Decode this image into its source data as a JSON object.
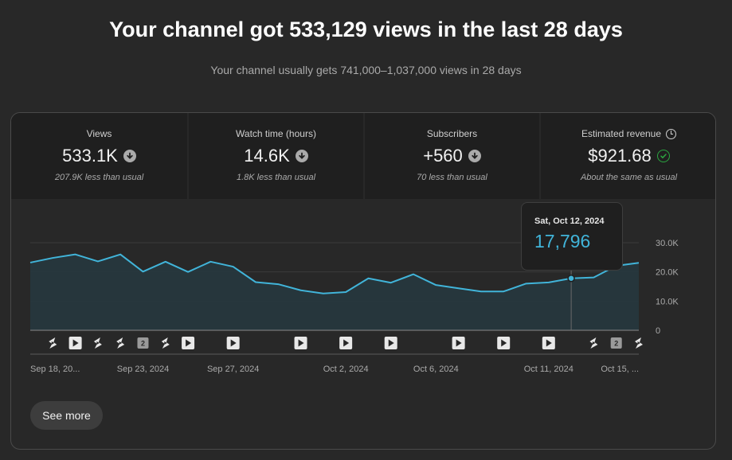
{
  "header": {
    "title": "Your channel got 533,129 views in the last 28 days",
    "subtitle": "Your channel usually gets 741,000–1,037,000 views in 28 days"
  },
  "metrics": [
    {
      "label": "Views",
      "value": "533.1K",
      "note": "207.9K less than usual",
      "trend": "down",
      "selected": false
    },
    {
      "label": "Watch time (hours)",
      "value": "14.6K",
      "note": "1.8K less than usual",
      "trend": "down",
      "selected": false
    },
    {
      "label": "Subscribers",
      "value": "+560",
      "note": "70 less than usual",
      "trend": "down",
      "selected": false
    },
    {
      "label": "Estimated revenue",
      "value": "$921.68",
      "note": "About the same as usual",
      "trend": "same",
      "selected": false,
      "label_icon": "clock-icon"
    }
  ],
  "tooltip": {
    "date": "Sat, Oct 12, 2024",
    "value": "17,796"
  },
  "see_more_label": "See more",
  "colors": {
    "line": "#41b4d9",
    "accent_green": "#2ba640",
    "background": "#282828"
  },
  "chart_data": {
    "type": "area",
    "ylim": [
      0,
      30000
    ],
    "yticks": [
      "30.0K",
      "20.0K",
      "10.0K",
      "0"
    ],
    "ytick_values": [
      30000,
      20000,
      10000,
      0
    ],
    "xtick_labels": [
      "Sep 18, 20...",
      "Sep 23, 2024",
      "Sep 27, 2024",
      "Oct 2, 2024",
      "Oct 6, 2024",
      "Oct 11, 2024",
      "Oct 15, ..."
    ],
    "xtick_days": [
      0,
      5,
      9,
      14,
      18,
      23,
      27
    ],
    "days": [
      "Sep 18",
      "Sep 19",
      "Sep 20",
      "Sep 21",
      "Sep 22",
      "Sep 23",
      "Sep 24",
      "Sep 25",
      "Sep 26",
      "Sep 27",
      "Sep 28",
      "Sep 29",
      "Sep 30",
      "Oct 1",
      "Oct 2",
      "Oct 3",
      "Oct 4",
      "Oct 5",
      "Oct 6",
      "Oct 7",
      "Oct 8",
      "Oct 9",
      "Oct 10",
      "Oct 11",
      "Oct 12",
      "Oct 13",
      "Oct 14",
      "Oct 15"
    ],
    "series": [
      {
        "values": [
          23200,
          24800,
          26000,
          23600,
          26000,
          20100,
          23500,
          20000,
          23500,
          21800,
          16500,
          15800,
          13700,
          12600,
          13100,
          17800,
          16300,
          19200,
          15500,
          14400,
          13300,
          13300,
          16000,
          16400,
          17796,
          18100,
          22100,
          23100
        ]
      }
    ],
    "highlight_index": 24,
    "markers": [
      {
        "day": 1,
        "kind": "shorts"
      },
      {
        "day": 2,
        "kind": "video"
      },
      {
        "day": 3,
        "kind": "shorts"
      },
      {
        "day": 4,
        "kind": "shorts"
      },
      {
        "day": 5,
        "kind": "count",
        "label": "2"
      },
      {
        "day": 6,
        "kind": "shorts"
      },
      {
        "day": 7,
        "kind": "video"
      },
      {
        "day": 9,
        "kind": "video"
      },
      {
        "day": 12,
        "kind": "video"
      },
      {
        "day": 14,
        "kind": "video"
      },
      {
        "day": 16,
        "kind": "video"
      },
      {
        "day": 19,
        "kind": "video"
      },
      {
        "day": 21,
        "kind": "video"
      },
      {
        "day": 23,
        "kind": "video"
      },
      {
        "day": 25,
        "kind": "shorts"
      },
      {
        "day": 26,
        "kind": "count",
        "label": "2"
      },
      {
        "day": 27,
        "kind": "shorts"
      }
    ]
  }
}
